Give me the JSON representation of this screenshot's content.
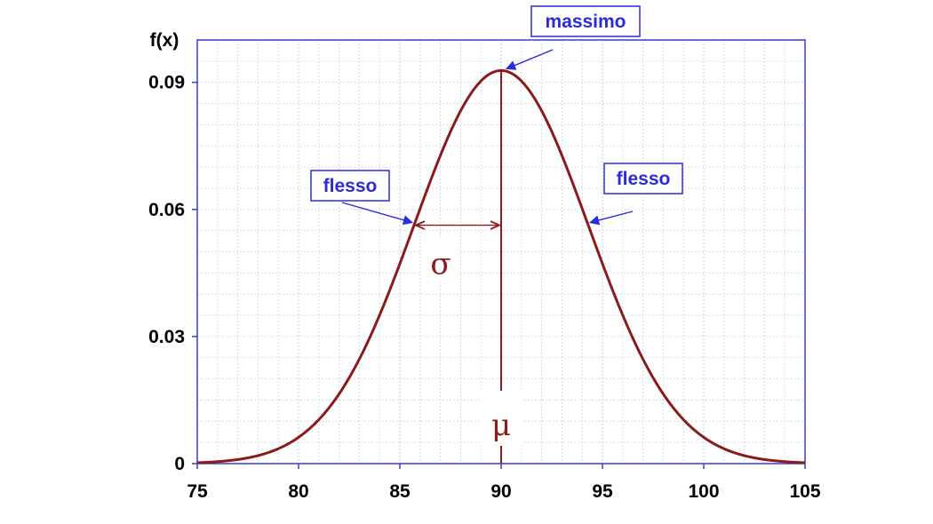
{
  "chart_data": {
    "type": "line",
    "ylabel": "f(x)",
    "xlim": [
      75,
      105
    ],
    "ylim": [
      0,
      0.1
    ],
    "x_ticks": [
      75,
      80,
      85,
      90,
      95,
      100,
      105
    ],
    "y_ticks": [
      0,
      0.03,
      0.06,
      0.09
    ],
    "y_tick_labels": [
      "0",
      "0.03",
      "0.06",
      "0.09"
    ],
    "grid": true,
    "distribution": {
      "mean": 90,
      "sd": 4.3
    },
    "series": [
      {
        "x": [
          75,
          76,
          77,
          78,
          79,
          80,
          81,
          82,
          83,
          84,
          85,
          86,
          87,
          88,
          89,
          90,
          91,
          92,
          93,
          94,
          95,
          96,
          97,
          98,
          99,
          100,
          101,
          102,
          103,
          104,
          105
        ],
        "values": [
          0.0002,
          0.0005,
          0.0012,
          0.0019,
          0.0036,
          0.0063,
          0.0104,
          0.0167,
          0.0248,
          0.0359,
          0.05,
          0.0625,
          0.075,
          0.0843,
          0.0901,
          0.0928,
          0.0901,
          0.0843,
          0.075,
          0.0625,
          0.05,
          0.0359,
          0.0248,
          0.0167,
          0.0104,
          0.0063,
          0.0036,
          0.0019,
          0.0012,
          0.0005,
          0.0002
        ]
      }
    ],
    "annotations": {
      "max_label": "massimo",
      "inflection_left_label": "flesso",
      "inflection_right_label": "flesso",
      "sigma_label": "σ",
      "mu_label": "μ"
    }
  },
  "colors": {
    "curve": "#8b1a1a",
    "axis_box": "#3b3bd9",
    "grid": "#c8d6e6",
    "callout": "#2b2bd9"
  }
}
